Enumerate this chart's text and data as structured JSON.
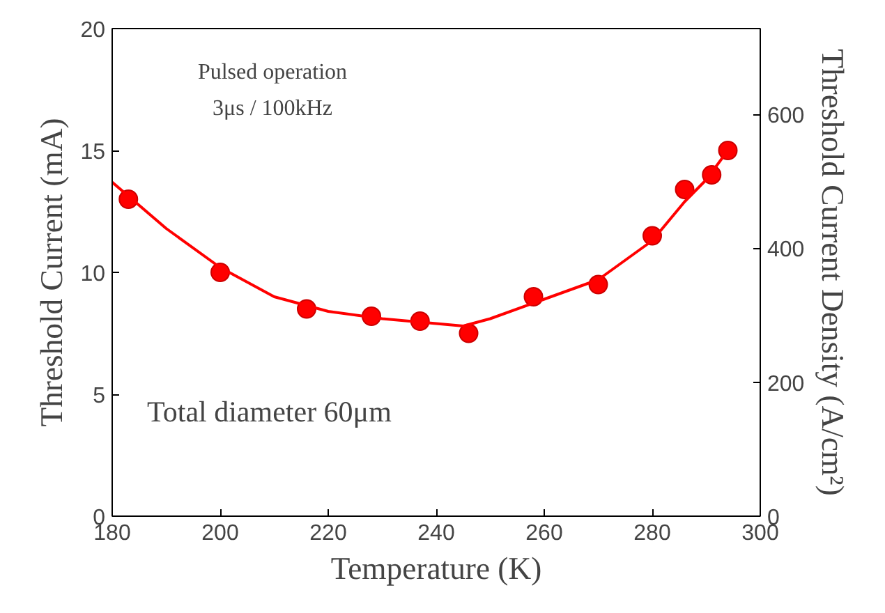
{
  "chart_data": {
    "type": "scatter",
    "xlabel": "Temperature (K)",
    "ylabel": "Threshold Current (mA)",
    "y2label": "Threshold Current Density (A/cm²)",
    "xlim": [
      180,
      300
    ],
    "xticks": [
      180,
      200,
      220,
      240,
      260,
      280,
      300
    ],
    "ylim": [
      0,
      20
    ],
    "yticks": [
      0,
      5,
      10,
      15,
      20
    ],
    "y2lim": [
      0,
      728
    ],
    "y2ticks": [
      0,
      200,
      400,
      600
    ],
    "grid": false,
    "annotations": [
      "Pulsed operation",
      "3μs / 100kHz",
      "Total diameter 60μm"
    ],
    "series": [
      {
        "color": "#ff0000",
        "marker": "circle",
        "x": [
          183,
          200,
          216,
          228,
          237,
          246,
          258,
          270,
          280,
          286,
          291,
          294
        ],
        "values": [
          13.0,
          10.0,
          8.5,
          8.2,
          8.0,
          7.5,
          9.0,
          9.5,
          11.5,
          13.4,
          14.0,
          15.0
        ]
      },
      {
        "type": "line",
        "color": "#ff0000",
        "x": [
          180,
          190,
          200,
          210,
          220,
          230,
          240,
          245,
          250,
          260,
          270,
          280,
          286,
          290,
          294
        ],
        "values": [
          13.7,
          11.8,
          10.2,
          9.0,
          8.4,
          8.1,
          7.9,
          7.8,
          8.1,
          8.9,
          9.7,
          11.3,
          12.9,
          13.8,
          15.0
        ]
      }
    ]
  }
}
